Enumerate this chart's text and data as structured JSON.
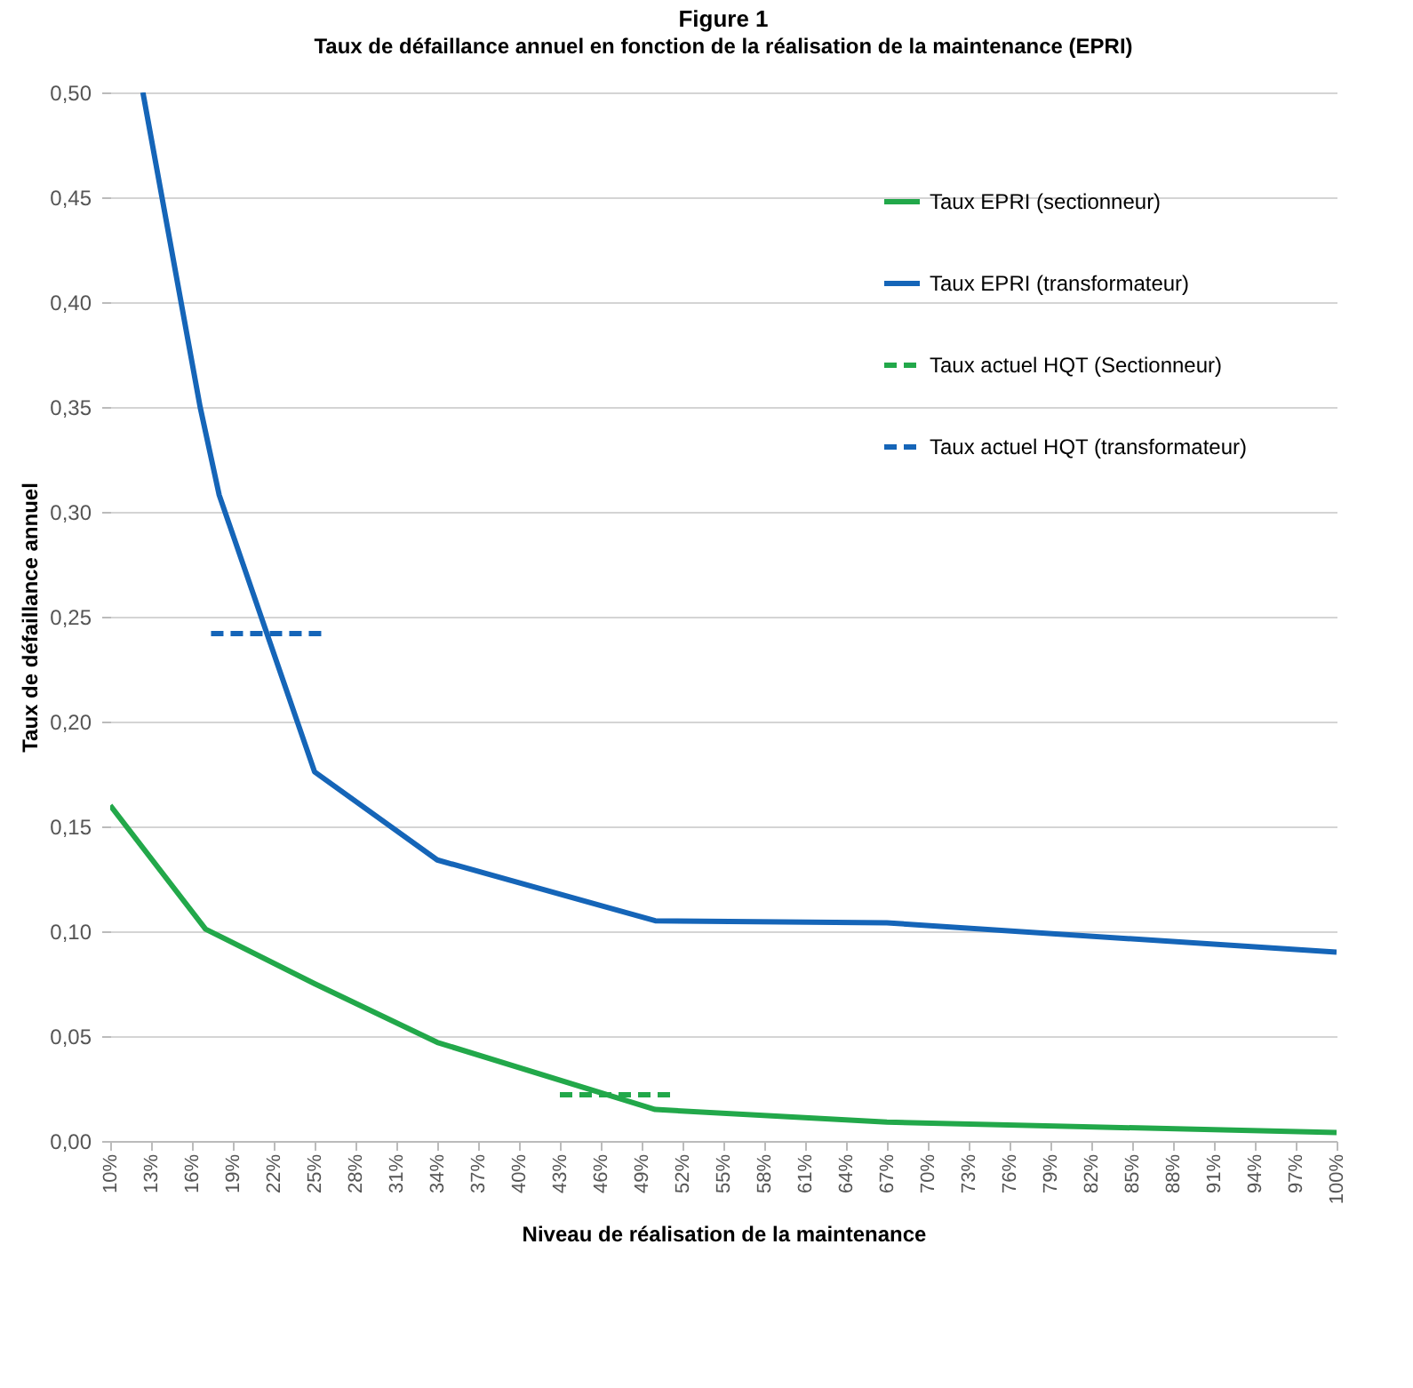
{
  "chart_data": {
    "type": "line",
    "title": "Figure 1",
    "subtitle": "Taux de défaillance annuel en fonction de la réalisation de la maintenance (EPRI)",
    "xlabel": "Niveau de réalisation de la maintenance",
    "ylabel": "Taux de défaillance annuel",
    "series": [
      {
        "name": "Taux EPRI (sectionneur)",
        "color": "#22a84a",
        "line_style": "solid",
        "x": [
          10,
          17,
          25,
          34,
          50,
          67,
          100
        ],
        "values": [
          0.16,
          0.101,
          0.075,
          0.047,
          0.015,
          0.009,
          0.004
        ]
      },
      {
        "name": "Taux EPRI (transformateur)",
        "color": "#1565b8",
        "line_style": "solid",
        "x": [
          12.4,
          16.6,
          18,
          25,
          34,
          50,
          67,
          100
        ],
        "values": [
          0.5,
          0.35,
          0.308,
          0.176,
          0.134,
          0.105,
          0.104,
          0.09
        ]
      },
      {
        "name": "Taux actuel HQT (Sectionneur)",
        "color": "#22a84a",
        "line_style": "dashed",
        "x": [
          43,
          51.5
        ],
        "values": [
          0.022,
          0.022
        ]
      },
      {
        "name": "Taux actuel HQT (transformateur)",
        "color": "#1565b8",
        "line_style": "dashed",
        "x": [
          17.4,
          25.6
        ],
        "values": [
          0.242,
          0.242
        ]
      }
    ],
    "xlim": [
      10,
      100
    ],
    "xticks": [
      {
        "value": 10,
        "label": "10%"
      },
      {
        "value": 13,
        "label": "13%"
      },
      {
        "value": 16,
        "label": "16%"
      },
      {
        "value": 19,
        "label": "19%"
      },
      {
        "value": 22,
        "label": "22%"
      },
      {
        "value": 25,
        "label": "25%"
      },
      {
        "value": 28,
        "label": "28%"
      },
      {
        "value": 31,
        "label": "31%"
      },
      {
        "value": 34,
        "label": "34%"
      },
      {
        "value": 37,
        "label": "37%"
      },
      {
        "value": 40,
        "label": "40%"
      },
      {
        "value": 43,
        "label": "43%"
      },
      {
        "value": 46,
        "label": "46%"
      },
      {
        "value": 49,
        "label": "49%"
      },
      {
        "value": 52,
        "label": "52%"
      },
      {
        "value": 55,
        "label": "55%"
      },
      {
        "value": 58,
        "label": "58%"
      },
      {
        "value": 61,
        "label": "61%"
      },
      {
        "value": 64,
        "label": "64%"
      },
      {
        "value": 67,
        "label": "67%"
      },
      {
        "value": 70,
        "label": "70%"
      },
      {
        "value": 73,
        "label": "73%"
      },
      {
        "value": 76,
        "label": "76%"
      },
      {
        "value": 79,
        "label": "79%"
      },
      {
        "value": 82,
        "label": "82%"
      },
      {
        "value": 85,
        "label": "85%"
      },
      {
        "value": 88,
        "label": "88%"
      },
      {
        "value": 91,
        "label": "91%"
      },
      {
        "value": 94,
        "label": "94%"
      },
      {
        "value": 97,
        "label": "97%"
      },
      {
        "value": 100,
        "label": "100%"
      }
    ],
    "ylim": [
      0,
      0.5
    ],
    "yticks": [
      {
        "value": 0,
        "label": "0,00"
      },
      {
        "value": 0.05,
        "label": "0,05"
      },
      {
        "value": 0.1,
        "label": "0,10"
      },
      {
        "value": 0.15,
        "label": "0,15"
      },
      {
        "value": 0.2,
        "label": "0,20"
      },
      {
        "value": 0.25,
        "label": "0,25"
      },
      {
        "value": 0.3,
        "label": "0,30"
      },
      {
        "value": 0.35,
        "label": "0,35"
      },
      {
        "value": 0.4,
        "label": "0,40"
      },
      {
        "value": 0.45,
        "label": "0,45"
      },
      {
        "value": 0.5,
        "label": "0,50"
      }
    ],
    "grid": "y",
    "legend": "top right"
  }
}
